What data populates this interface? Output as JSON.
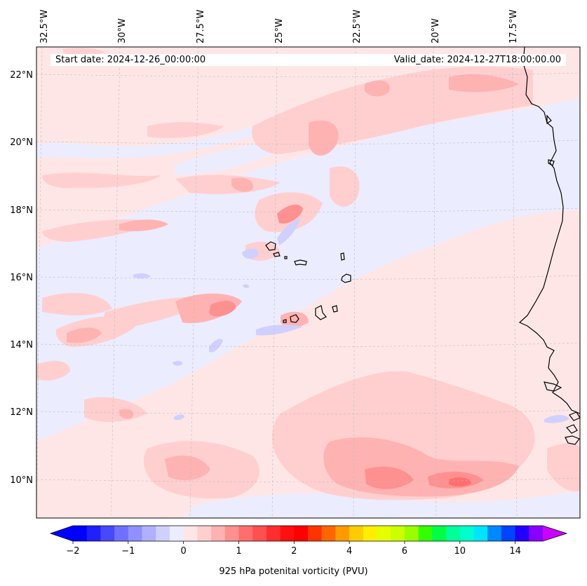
{
  "map": {
    "title_left": "Start date: 2024-12-26_00:00:00",
    "title_right": "Valid_date: 2024-12-27T18:00:00.00",
    "lon_labels": [
      "32.5°W",
      "30°W",
      "27.5°W",
      "25°W",
      "22.5°W",
      "20°W",
      "17.5°W"
    ],
    "lat_labels": [
      "22°N",
      "20°N",
      "18°N",
      "16°N",
      "14°N",
      "12°N",
      "10°N"
    ],
    "background_color": "#ffe6e6",
    "coastline_color": "#000000",
    "gridline_color": "#bbbbbb"
  },
  "colorbar": {
    "label": "925 hPa potenital vorticity (PVU)",
    "tick_labels": [
      "−2",
      "−1",
      "0",
      "1",
      "2",
      "4",
      "6",
      "10",
      "14"
    ],
    "colors": [
      "#0000ff",
      "#2020ff",
      "#4848ff",
      "#7070ff",
      "#9090ff",
      "#b0b0ff",
      "#d0d0ff",
      "#ececff",
      "#ffe6e6",
      "#ffcfcf",
      "#ffb2b2",
      "#ff9090",
      "#ff6e6e",
      "#ff5050",
      "#ff2e2e",
      "#ff1010",
      "#ff0000",
      "#ff3300",
      "#ff6600",
      "#ff9900",
      "#ffcc00",
      "#ffee00",
      "#e6ff00",
      "#ccff00",
      "#99ff00",
      "#33ff00",
      "#00ff44",
      "#00ff99",
      "#00ffcc",
      "#00e5ff",
      "#0088ff",
      "#0044ff",
      "#2200ff",
      "#8800ff"
    ],
    "extend_low_color": "#0000ff",
    "extend_high_color": "#cc00ff"
  }
}
